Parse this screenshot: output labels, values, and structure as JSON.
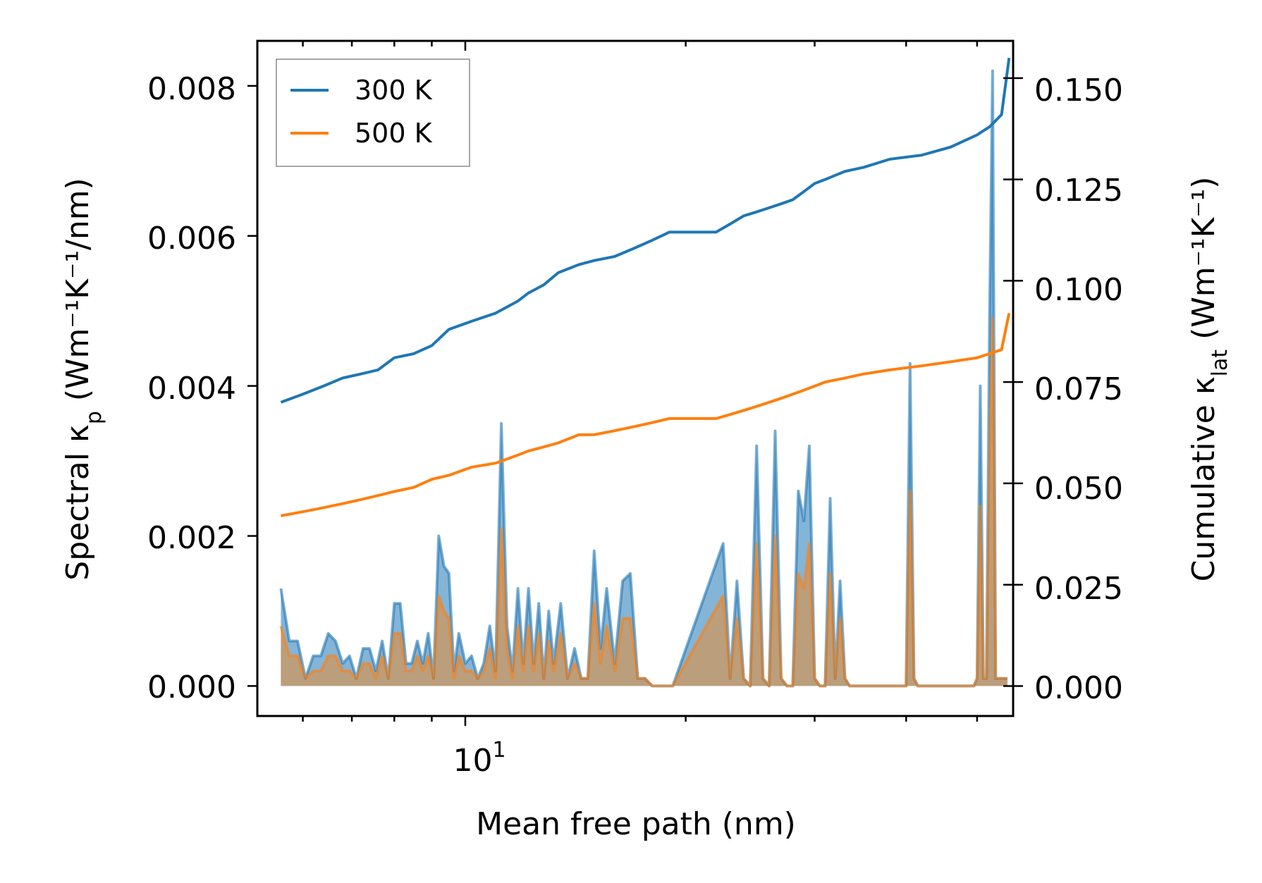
{
  "chart_data": {
    "type": "line",
    "title": "",
    "xlabel": "Mean free path (nm)",
    "xscale": "log",
    "xlim": [
      5.2,
      56
    ],
    "x_ticks": [
      {
        "value": 10,
        "label": "10",
        "exponent": "1"
      }
    ],
    "ylabel_left": {
      "prefix": "Spectral κ",
      "sub": "p",
      "units": " (Wm⁻¹K⁻¹/nm)"
    },
    "ylabel_right": {
      "prefix": "Cumulative κ",
      "sub": "lat",
      "units": " (Wm⁻¹K⁻¹)"
    },
    "ylim_left": [
      -0.0004,
      0.0086
    ],
    "ylim_right": [
      -0.0074,
      0.1592
    ],
    "left_ticks": [
      "0.000",
      "0.002",
      "0.004",
      "0.006",
      "0.008"
    ],
    "right_ticks": [
      "0.000",
      "0.025",
      "0.050",
      "0.075",
      "0.100",
      "0.125",
      "0.150"
    ],
    "legend": {
      "position": "top-left",
      "entries": [
        "300 K",
        "500 K"
      ]
    },
    "colors": {
      "300K": "#1f77b4",
      "500K": "#ff7f0e",
      "fill_orange": "#c49a6c"
    },
    "series": [
      {
        "name": "300 K",
        "kind": "cumulative",
        "axis": "right",
        "color": "#1f77b4",
        "x": [
          5.6,
          6.0,
          6.4,
          6.8,
          7.2,
          7.6,
          8.0,
          8.5,
          9.0,
          9.5,
          10.2,
          11.0,
          11.8,
          12.2,
          12.8,
          13.4,
          14.3,
          15.0,
          16.0,
          17.0,
          18.0,
          19.0,
          22.0,
          23.0,
          24.0,
          25.0,
          26.0,
          27.0,
          28.0,
          29.0,
          30.0,
          31.0,
          33.0,
          35.0,
          38.0,
          42.0,
          46.0,
          50.0,
          52.0,
          54.0,
          55.3
        ],
        "y": [
          0.07,
          0.072,
          0.074,
          0.076,
          0.077,
          0.078,
          0.081,
          0.082,
          0.084,
          0.088,
          0.09,
          0.092,
          0.095,
          0.097,
          0.099,
          0.102,
          0.104,
          0.105,
          0.106,
          0.108,
          0.11,
          0.112,
          0.112,
          0.114,
          0.116,
          0.117,
          0.118,
          0.119,
          0.12,
          0.122,
          0.124,
          0.125,
          0.127,
          0.128,
          0.13,
          0.131,
          0.133,
          0.136,
          0.138,
          0.141,
          0.155
        ]
      },
      {
        "name": "500 K",
        "kind": "cumulative",
        "axis": "right",
        "color": "#ff7f0e",
        "x": [
          5.6,
          6.0,
          6.4,
          6.8,
          7.2,
          7.6,
          8.0,
          8.5,
          9.0,
          9.5,
          10.2,
          11.0,
          11.8,
          12.2,
          12.8,
          13.4,
          14.3,
          15.0,
          16.0,
          17.0,
          18.0,
          19.0,
          22.0,
          23.0,
          24.0,
          25.0,
          26.0,
          27.0,
          28.0,
          29.0,
          30.0,
          31.0,
          33.0,
          35.0,
          38.0,
          42.0,
          46.0,
          50.0,
          52.0,
          54.0,
          55.3
        ],
        "y": [
          0.042,
          0.043,
          0.044,
          0.045,
          0.046,
          0.047,
          0.048,
          0.049,
          0.051,
          0.052,
          0.054,
          0.055,
          0.057,
          0.058,
          0.059,
          0.06,
          0.062,
          0.062,
          0.063,
          0.064,
          0.065,
          0.066,
          0.066,
          0.067,
          0.068,
          0.069,
          0.07,
          0.071,
          0.072,
          0.073,
          0.074,
          0.075,
          0.076,
          0.077,
          0.078,
          0.079,
          0.08,
          0.081,
          0.082,
          0.083,
          0.092
        ]
      },
      {
        "name": "300 K",
        "kind": "spectral",
        "axis": "left",
        "color": "#1f77b4",
        "x": [
          5.6,
          5.75,
          5.9,
          6.05,
          6.2,
          6.35,
          6.5,
          6.65,
          6.8,
          6.95,
          7.1,
          7.25,
          7.4,
          7.55,
          7.7,
          7.85,
          8.0,
          8.15,
          8.3,
          8.45,
          8.6,
          8.75,
          8.9,
          9.05,
          9.2,
          9.35,
          9.5,
          9.65,
          9.8,
          10.0,
          10.2,
          10.4,
          10.6,
          10.8,
          11.0,
          11.2,
          11.4,
          11.6,
          11.8,
          12.0,
          12.2,
          12.4,
          12.6,
          12.8,
          13.0,
          13.2,
          13.5,
          13.8,
          14.1,
          14.4,
          14.7,
          15.0,
          15.3,
          15.6,
          16.0,
          16.4,
          16.8,
          17.2,
          17.6,
          18.0,
          18.4,
          18.8,
          19.2,
          22.5,
          23.0,
          23.5,
          24.0,
          24.5,
          25.0,
          25.5,
          26.0,
          26.5,
          27.0,
          27.5,
          28.0,
          28.5,
          29.0,
          29.5,
          30.0,
          30.5,
          31.0,
          31.5,
          32.0,
          32.5,
          33.0,
          33.5,
          34.0,
          34.5,
          35.0,
          40.0,
          40.5,
          41.0,
          41.5,
          49.5,
          50.0,
          50.5,
          51.0,
          51.5,
          52.0,
          52.5,
          53.0,
          53.5,
          54.0,
          54.5,
          55.0
        ],
        "values": [
          0.0013,
          0.0006,
          0.0006,
          0.0001,
          0.0004,
          0.0004,
          0.0007,
          0.0006,
          0.0003,
          0.0004,
          0.0001,
          0.0005,
          0.0005,
          0.0002,
          0.0006,
          0.0001,
          0.0011,
          0.0011,
          0.0003,
          0.0003,
          0.0006,
          0.0003,
          0.0007,
          0.0001,
          0.002,
          0.0016,
          0.0015,
          0.0002,
          0.0007,
          0.0003,
          0.0004,
          0.0001,
          0.0003,
          0.0008,
          0.0002,
          0.0035,
          0.0008,
          0.0002,
          0.0013,
          0.0003,
          0.0013,
          0.0003,
          0.0011,
          0.0001,
          0.001,
          0.0003,
          0.0011,
          0.0001,
          0.0005,
          0.0001,
          0.0001,
          0.0018,
          0.0005,
          0.0013,
          0.0003,
          0.0014,
          0.0015,
          0.0001,
          0.0001,
          0.0,
          0.0,
          0.0,
          0.0,
          0.0019,
          0.0001,
          0.0014,
          0.0001,
          0.0,
          0.0032,
          0.0001,
          0.0,
          0.0034,
          0.0001,
          0.0,
          0.0,
          0.0026,
          0.0022,
          0.0032,
          0.0001,
          0.0,
          0.0,
          0.0025,
          0.0001,
          0.0014,
          0.0001,
          0.0,
          0.0,
          0.0,
          0.0,
          0.0,
          0.0043,
          0.0001,
          0.0,
          0.0,
          0.0001,
          0.004,
          0.0001,
          0.0001,
          0.0049,
          0.0082,
          0.0001,
          0.0001,
          0.0001,
          0.0001,
          0.0001
        ]
      },
      {
        "name": "500 K",
        "kind": "spectral",
        "axis": "left",
        "color": "#ff7f0e",
        "x": [
          5.6,
          5.75,
          5.9,
          6.05,
          6.2,
          6.35,
          6.5,
          6.65,
          6.8,
          6.95,
          7.1,
          7.25,
          7.4,
          7.55,
          7.7,
          7.85,
          8.0,
          8.15,
          8.3,
          8.45,
          8.6,
          8.75,
          8.9,
          9.05,
          9.2,
          9.35,
          9.5,
          9.65,
          9.8,
          10.0,
          10.2,
          10.4,
          10.6,
          10.8,
          11.0,
          11.2,
          11.4,
          11.6,
          11.8,
          12.0,
          12.2,
          12.4,
          12.6,
          12.8,
          13.0,
          13.2,
          13.5,
          13.8,
          14.1,
          14.4,
          14.7,
          15.0,
          15.3,
          15.6,
          16.0,
          16.4,
          16.8,
          17.2,
          17.6,
          18.0,
          18.4,
          18.8,
          19.2,
          22.5,
          23.0,
          23.5,
          24.0,
          24.5,
          25.0,
          25.5,
          26.0,
          26.5,
          27.0,
          27.5,
          28.0,
          28.5,
          29.0,
          29.5,
          30.0,
          30.5,
          31.0,
          31.5,
          32.0,
          32.5,
          33.0,
          33.5,
          34.0,
          34.5,
          35.0,
          40.0,
          40.5,
          41.0,
          41.5,
          49.5,
          50.0,
          50.5,
          51.0,
          51.5,
          52.0,
          52.5,
          53.0,
          53.5,
          54.0,
          54.5,
          55.0
        ],
        "values": [
          0.0008,
          0.0004,
          0.0004,
          0.0001,
          0.0002,
          0.0002,
          0.0004,
          0.0004,
          0.0002,
          0.0002,
          0.0001,
          0.0003,
          0.0003,
          0.0001,
          0.0004,
          0.0001,
          0.0007,
          0.0007,
          0.0002,
          0.0002,
          0.0004,
          0.0002,
          0.0004,
          0.0001,
          0.0012,
          0.001,
          0.0009,
          0.0001,
          0.0004,
          0.0002,
          0.0002,
          0.0001,
          0.0002,
          0.0005,
          0.0001,
          0.0021,
          0.0005,
          0.0001,
          0.0008,
          0.0002,
          0.0008,
          0.0002,
          0.0007,
          0.0001,
          0.0006,
          0.0002,
          0.0007,
          0.0001,
          0.0003,
          0.0001,
          0.0001,
          0.0011,
          0.0003,
          0.0008,
          0.0002,
          0.0009,
          0.0009,
          0.0001,
          0.0001,
          0.0,
          0.0,
          0.0,
          0.0,
          0.0012,
          0.0001,
          0.0009,
          0.0001,
          0.0,
          0.0019,
          0.0001,
          0.0,
          0.002,
          0.0001,
          0.0,
          0.0,
          0.0015,
          0.0013,
          0.0019,
          0.0001,
          0.0,
          0.0,
          0.0015,
          0.0001,
          0.0009,
          0.0001,
          0.0,
          0.0,
          0.0,
          0.0,
          0.0,
          0.0026,
          0.0001,
          0.0,
          0.0,
          0.0001,
          0.0024,
          0.0001,
          0.0001,
          0.003,
          0.0049,
          0.0001,
          0.0001,
          0.0001,
          0.0001,
          0.0001
        ]
      }
    ]
  }
}
